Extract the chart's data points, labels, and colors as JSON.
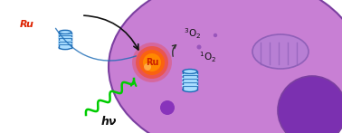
{
  "bg_color": "#ffffff",
  "cell_fill": "#c87fd4",
  "cell_fill2": "#b86ec4",
  "cell_edge": "#7b3fa0",
  "nucleus_fill": "#7b30b0",
  "ru_ball_color1": "#ff4500",
  "ru_ball_color2": "#ff8c00",
  "ru_text": "Ru",
  "ru_text_color": "#dd2200",
  "ru_outside_text_color": "#dd2200",
  "hv_text": "hν",
  "o2_singlet": "¹O₂",
  "o2_triplet": "³O₂",
  "green_arrow_color": "#00cc00",
  "aptamer_color": "#1a6ab5",
  "aptamer_fill": "#aaddff",
  "arrow_color": "#111111",
  "dot_color": "#9955bb",
  "mito_color": "#b87fd4",
  "mito_edge": "#9060b8"
}
